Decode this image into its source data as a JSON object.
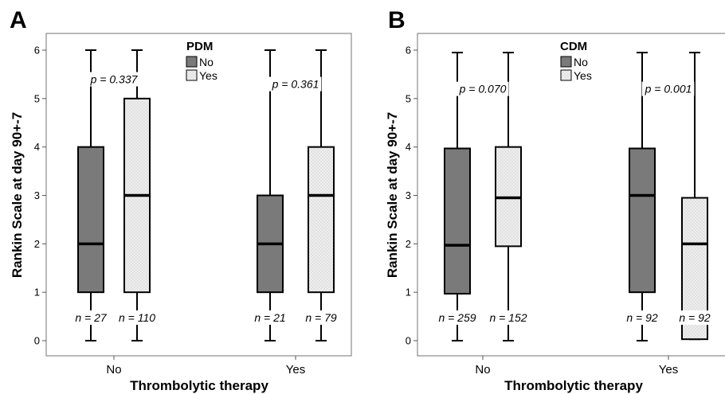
{
  "chart_data": [
    {
      "panel_label": "A",
      "type": "box",
      "title": "",
      "ylabel": "Rankin Scale at day 90+-7",
      "xlabel": "Thrombolytic therapy",
      "ylim": [
        0,
        6
      ],
      "yticks": [
        "0",
        "1",
        "2",
        "3",
        "4",
        "5",
        "6"
      ],
      "grid": false,
      "categories": [
        "No",
        "Yes"
      ],
      "legend": {
        "title": "PDM",
        "position": "top-center",
        "entries": [
          "No",
          "Yes"
        ]
      },
      "colors": {
        "No": "#7a7a7a",
        "Yes": "#eeeeee"
      },
      "boxes": [
        {
          "category": "No",
          "group": "No",
          "min": 0,
          "q1": 1,
          "median": 2,
          "q3": 4,
          "max": 6,
          "n_label": "n = 27"
        },
        {
          "category": "No",
          "group": "Yes",
          "min": 0,
          "q1": 1,
          "median": 3,
          "q3": 5,
          "max": 6,
          "n_label": "n = 110"
        },
        {
          "category": "Yes",
          "group": "No",
          "min": 0,
          "q1": 1,
          "median": 2,
          "q3": 3,
          "max": 6,
          "n_label": "n = 21"
        },
        {
          "category": "Yes",
          "group": "Yes",
          "min": 0,
          "q1": 1,
          "median": 3,
          "q3": 4,
          "max": 6,
          "n_label": "n = 79"
        }
      ],
      "annotations": [
        {
          "category": "No",
          "text": "p = 0.337",
          "y": 5.4
        },
        {
          "category": "Yes",
          "text": "p = 0.361",
          "y": 5.3
        }
      ]
    },
    {
      "panel_label": "B",
      "type": "box",
      "title": "",
      "ylabel": "Rankin Scale at day 90+-7",
      "xlabel": "Thrombolytic therapy",
      "ylim": [
        0,
        6
      ],
      "yticks": [
        "0",
        "1",
        "2",
        "3",
        "4",
        "5",
        "6"
      ],
      "grid": false,
      "categories": [
        "No",
        "Yes"
      ],
      "legend": {
        "title": "CDM",
        "position": "top-center",
        "entries": [
          "No",
          "Yes"
        ]
      },
      "colors": {
        "No": "#7a7a7a",
        "Yes": "#eeeeee"
      },
      "boxes": [
        {
          "category": "No",
          "group": "No",
          "min": 0,
          "q1": 0.97,
          "median": 1.97,
          "q3": 3.97,
          "max": 5.95,
          "n_label": "n = 259"
        },
        {
          "category": "No",
          "group": "Yes",
          "min": 0,
          "q1": 1.95,
          "median": 2.95,
          "q3": 4.0,
          "max": 5.95,
          "n_label": "n = 152"
        },
        {
          "category": "Yes",
          "group": "No",
          "min": 0,
          "q1": 1.0,
          "median": 3.0,
          "q3": 3.97,
          "max": 5.95,
          "n_label": "n = 92"
        },
        {
          "category": "Yes",
          "group": "Yes",
          "min": 0.03,
          "q1": 0.03,
          "median": 2.0,
          "q3": 2.95,
          "max": 5.95,
          "n_label": "n = 92"
        }
      ],
      "annotations": [
        {
          "category": "No",
          "text": "p = 0.070",
          "y": 5.2
        },
        {
          "category": "Yes",
          "text": "p = 0.001",
          "y": 5.2
        }
      ]
    }
  ]
}
